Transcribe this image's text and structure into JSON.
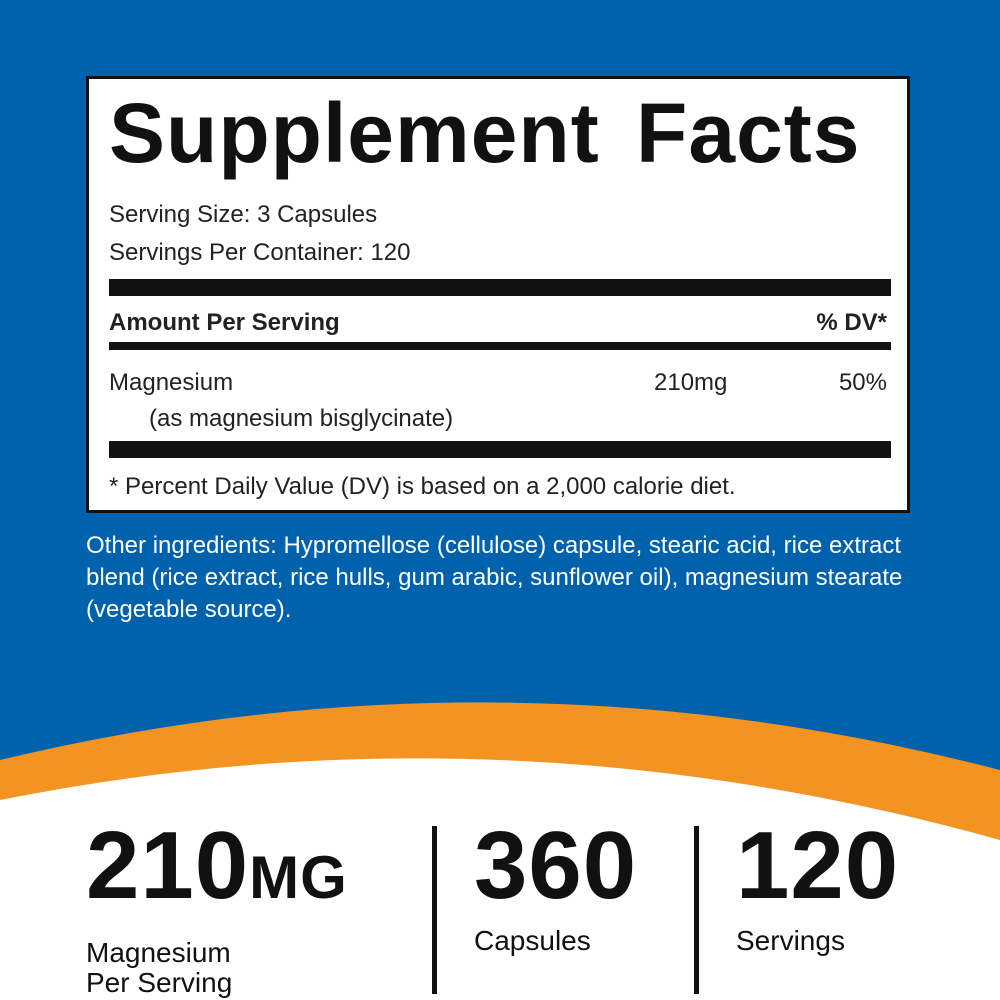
{
  "colors": {
    "blue": "#0061ad",
    "orange": "#f29322",
    "white": "#ffffff",
    "text": "#111111"
  },
  "facts": {
    "title": "Supplement Facts",
    "serving_size": "Serving Size:  3 Capsules",
    "servings_per_container": "Servings Per Container: 120",
    "amount_header": "Amount Per Serving",
    "dv_header": "% DV*",
    "ingredient": {
      "name": "Magnesium",
      "form": "(as magnesium bisglycinate)",
      "amount": "210mg",
      "dv": "50%"
    },
    "footnote": "* Percent Daily Value (DV) is based on a 2,000 calorie diet."
  },
  "other_ingredients": "Other ingredients: Hypromellose (cellulose) capsule, stearic acid, rice extract blend (rice extract, rice hulls, gum arabic, sunflower oil), magnesium stearate (vegetable source).",
  "stats": [
    {
      "value": "210",
      "unit": "MG",
      "label1": "Magnesium",
      "label2": "Per Serving"
    },
    {
      "value": "360",
      "label1": "Capsules"
    },
    {
      "value": "120",
      "label1": "Servings"
    }
  ]
}
